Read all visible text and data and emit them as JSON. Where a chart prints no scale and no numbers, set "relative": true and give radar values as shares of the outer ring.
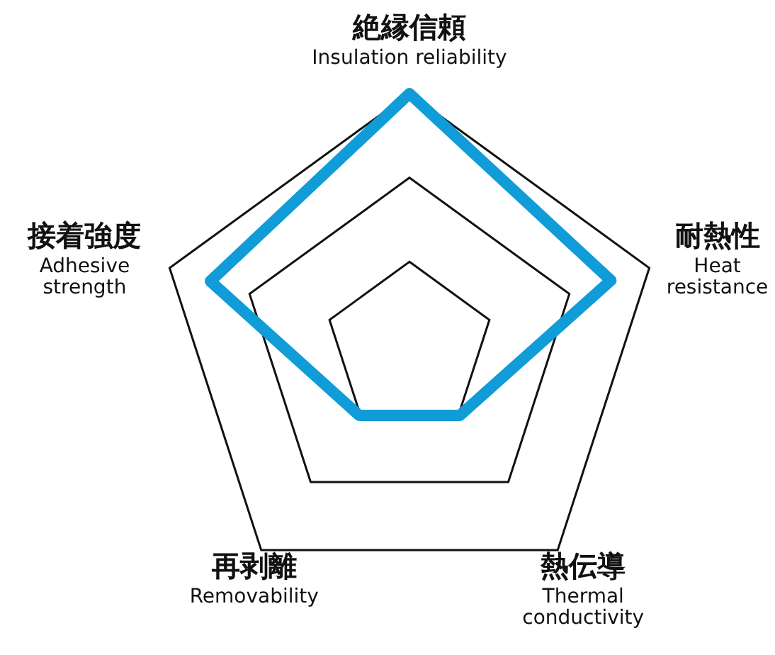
{
  "chart_data": {
    "type": "radar",
    "relative": true,
    "grid": true,
    "marker": "none",
    "categories": [
      "絶縁信頼\nInsulation reliability",
      "耐熱性\nHeat\nresistance",
      "熱伝導\nThermal\nconductivity",
      "再剥離\nRemovability",
      "接着強度\nAdhesive\nstrength"
    ],
    "series": [
      {
        "color": "#109cd8",
        "values": [
          1,
          0.84,
          0.34,
          0.34,
          0.83
        ]
      }
    ]
  }
}
